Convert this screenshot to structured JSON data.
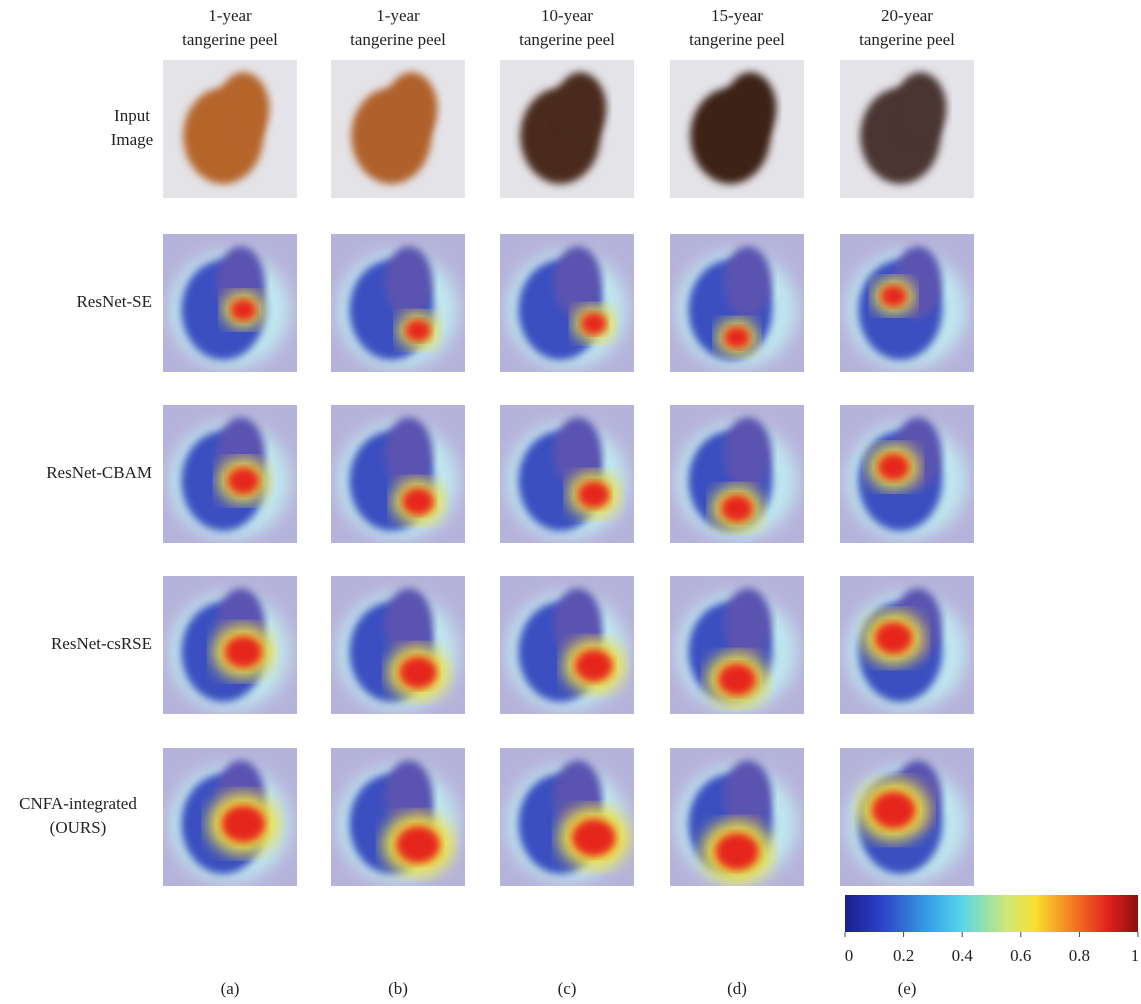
{
  "columns": [
    [
      "1-year",
      "tangerine peel"
    ],
    [
      "1-year",
      "tangerine peel"
    ],
    [
      "10-year",
      "tangerine peel"
    ],
    [
      "15-year",
      "tangerine peel"
    ],
    [
      "20-year",
      "tangerine peel"
    ]
  ],
  "rows": [
    [
      "Input",
      "Image"
    ],
    [
      "ResNet-SE"
    ],
    [
      "ResNet-CBAM"
    ],
    [
      "ResNet-csRSE"
    ],
    [
      "CNFA-integrated",
      "(OURS)"
    ]
  ],
  "colorbar": {
    "range": [
      0,
      1
    ],
    "ticks": [
      0,
      0.2,
      0.4,
      0.6,
      0.8,
      1
    ]
  },
  "panel_labels": [
    "(a)",
    "(b)",
    "(c)",
    "(d)",
    "(e)"
  ]
}
